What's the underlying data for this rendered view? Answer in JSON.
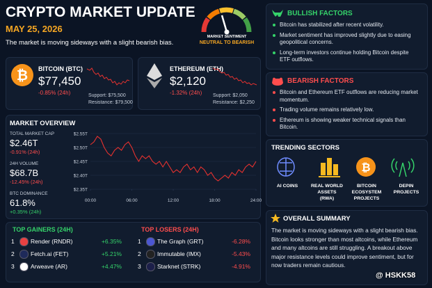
{
  "header": {
    "title": "CRYPTO MARKET UPDATE",
    "date": "MAY 25, 2026",
    "subtitle": "The market is moving sideways with a slight bearish bias."
  },
  "sentiment": {
    "label": "MARKET SENTIMENT",
    "value": "NEUTRAL TO BEARISH"
  },
  "coins": [
    {
      "name": "BITCOIN (BTC)",
      "price": "$77,450",
      "change": "-0.85% (24h)",
      "support": "Support: $75,500",
      "resistance": "Resistance: $79,500"
    },
    {
      "name": "ETHEREUM (ETH)",
      "price": "$2,120",
      "change": "-1.32% (24h)",
      "support": "Support: $2,050",
      "resistance": "Resistance: $2,250"
    }
  ],
  "market_overview": {
    "title": "MARKET OVERVIEW",
    "stats": [
      {
        "label": "TOTAL MARKET CAP",
        "value": "$2.46T",
        "change": "-0.91% (24h)"
      },
      {
        "label": "24H VOLUME",
        "value": "$68.7B",
        "change": "-12.45% (24h)"
      },
      {
        "label": "BTC DOMINANCE",
        "value": "61.8%",
        "change": "+0.35% (24h)"
      }
    ],
    "chart": {
      "type": "line",
      "x": [
        0,
        0.5,
        1,
        1.5,
        2,
        2.5,
        3,
        3.5,
        4,
        4.5,
        5,
        5.5,
        6,
        6.5,
        7,
        7.5,
        8,
        8.5,
        9,
        9.5,
        10,
        10.5,
        11,
        11.5,
        12,
        12.5,
        13,
        13.5,
        14,
        14.5,
        15,
        15.5,
        16,
        16.5,
        17,
        17.5,
        18,
        18.5,
        19,
        19.5,
        20,
        20.5,
        21,
        21.5,
        22,
        22.5,
        23,
        23.5,
        24
      ],
      "series": [
        {
          "color": "#e8322f",
          "values": [
            2.51,
            2.52,
            2.54,
            2.53,
            2.5,
            2.48,
            2.47,
            2.49,
            2.5,
            2.49,
            2.51,
            2.52,
            2.5,
            2.47,
            2.45,
            2.47,
            2.46,
            2.47,
            2.45,
            2.44,
            2.45,
            2.43,
            2.45,
            2.43,
            2.41,
            2.42,
            2.41,
            2.43,
            2.44,
            2.42,
            2.43,
            2.41,
            2.43,
            2.42,
            2.4,
            2.41,
            2.39,
            2.38,
            2.39,
            2.4,
            2.39,
            2.41,
            2.4,
            2.42,
            2.41,
            2.43,
            2.44,
            2.43,
            2.45
          ]
        }
      ],
      "xlim": [
        0,
        24
      ],
      "xticks": [
        {
          "value": 0,
          "label": "00:00"
        },
        {
          "value": 6,
          "label": "06:00"
        },
        {
          "value": 12,
          "label": "12:00"
        },
        {
          "value": 18,
          "label": "18:00"
        },
        {
          "value": 24,
          "label": "24:00"
        }
      ],
      "ylim": [
        2.35,
        2.55
      ],
      "yticks": [
        {
          "value": 2.35,
          "label": "$2.35T"
        },
        {
          "value": 2.4,
          "label": "$2.40T"
        },
        {
          "value": 2.45,
          "label": "$2.45T"
        },
        {
          "value": 2.5,
          "label": "$2.50T"
        },
        {
          "value": 2.55,
          "label": "$2.55T"
        }
      ],
      "grid": true
    }
  },
  "top_gainers": {
    "title": "TOP GAINERS (24H)",
    "rows": [
      {
        "rank": "1",
        "name": "Render (RNDR)",
        "change": "+6.35%"
      },
      {
        "rank": "2",
        "name": "Fetch.ai (FET)",
        "change": "+5.21%"
      },
      {
        "rank": "3",
        "name": "Arweave (AR)",
        "change": "+4.47%"
      }
    ]
  },
  "top_losers": {
    "title": "TOP LOSERS (24H)",
    "rows": [
      {
        "rank": "1",
        "name": "The Graph (GRT)",
        "change": "-6.28%"
      },
      {
        "rank": "2",
        "name": "Immutable (IMX)",
        "change": "-5.43%"
      },
      {
        "rank": "3",
        "name": "Starknet (STRK)",
        "change": "-4.91%"
      }
    ]
  },
  "bullish": {
    "title": "BULLISH FACTORS",
    "items": [
      "Bitcoin has stabilized after recent volatility.",
      "Market sentiment has improved slightly due to easing geopolitical concerns.",
      "Long-term investors continue holding Bitcoin despite ETF outflows."
    ]
  },
  "bearish": {
    "title": "BEARISH FACTORS",
    "items": [
      "Bitcoin and Ethereum ETF outflows are reducing market momentum.",
      "Trading volume remains relatively low.",
      "Ethereum is showing weaker technical signals than Bitcoin."
    ]
  },
  "trending": {
    "title": "TRENDING SECTORS",
    "sectors": [
      "AI COINS",
      "REAL WORLD ASSETS (RWA)",
      "BITCOIN ECOSYSTEM PROJECTS",
      "DEPIN PROJECTS"
    ]
  },
  "summary": {
    "title": "OVERALL SUMMARY",
    "text": "The market is moving sideways with a slight bearish bias. Bitcoin looks stronger than most altcoins, while Ethereum and many altcoins are still struggling. A breakout above major resistance levels could improve sentiment, but for now traders remain cautious."
  },
  "watermark": "@ HSKK58"
}
